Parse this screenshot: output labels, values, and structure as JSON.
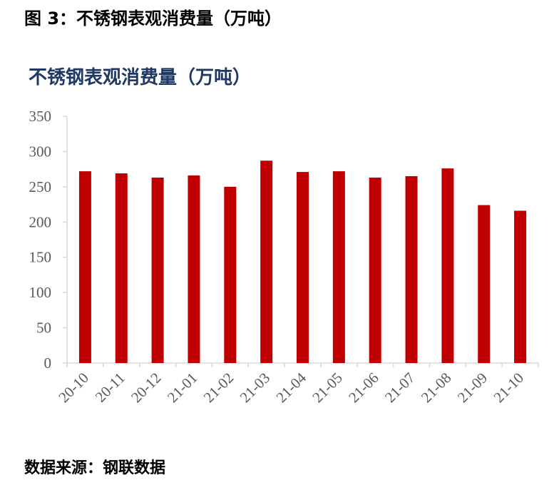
{
  "figure_caption": "图 3：不锈钢表观消费量（万吨）",
  "source_note": "数据来源：钢联数据",
  "colors": {
    "bar": "#c00000",
    "title": "#1f3864",
    "axis": "#d9d9d9",
    "tick_text": "#595959"
  },
  "chart_data": {
    "type": "bar",
    "title": "不锈钢表观消费量（万吨）",
    "xlabel": "",
    "ylabel": "",
    "categories": [
      "20-10",
      "20-11",
      "20-12",
      "21-01",
      "21-02",
      "21-03",
      "21-04",
      "21-05",
      "21-06",
      "21-07",
      "21-08",
      "21-09",
      "21-10"
    ],
    "values": [
      272,
      269,
      263,
      266,
      250,
      287,
      271,
      272,
      263,
      265,
      276,
      224,
      216
    ],
    "ylim": [
      0,
      350
    ],
    "yticks": [
      0,
      50,
      100,
      150,
      200,
      250,
      300,
      350
    ],
    "grid": false,
    "legend": "none"
  }
}
